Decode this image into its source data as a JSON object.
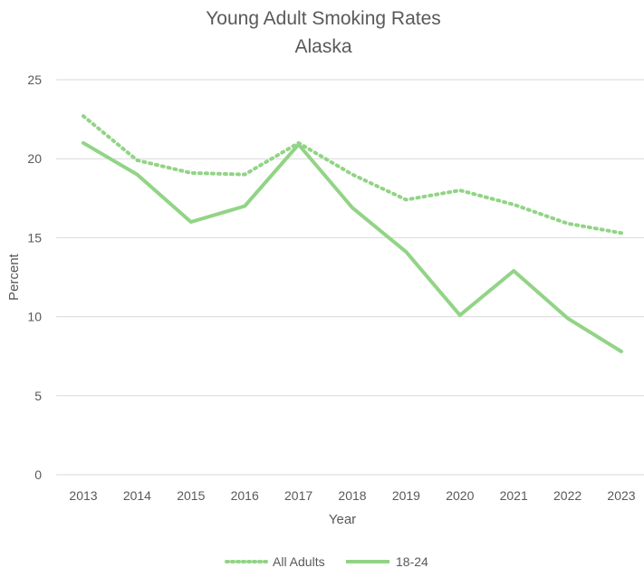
{
  "chart_data": {
    "type": "line",
    "title": "Young Adult Smoking Rates",
    "subtitle": "Alaska",
    "xlabel": "Year",
    "ylabel": "Percent",
    "x": [
      "2013",
      "2014",
      "2015",
      "2016",
      "2017",
      "2018",
      "2019",
      "2020",
      "2021",
      "2022",
      "2023"
    ],
    "ylim": [
      0,
      25
    ],
    "yticks": [
      "0",
      "5",
      "10",
      "15",
      "20",
      "25"
    ],
    "grid": true,
    "legend_position": "bottom",
    "series": [
      {
        "name": "All Adults",
        "values": [
          22.7,
          19.9,
          19.1,
          19.0,
          21.0,
          19.0,
          17.4,
          18.0,
          17.1,
          15.9,
          15.3
        ],
        "color": "#92d486",
        "style": "dotted"
      },
      {
        "name": "18-24",
        "values": [
          21.0,
          19.0,
          16.0,
          17.0,
          20.9,
          16.9,
          14.1,
          10.1,
          12.9,
          9.9,
          7.8
        ],
        "color": "#92d486",
        "style": "solid"
      }
    ]
  }
}
